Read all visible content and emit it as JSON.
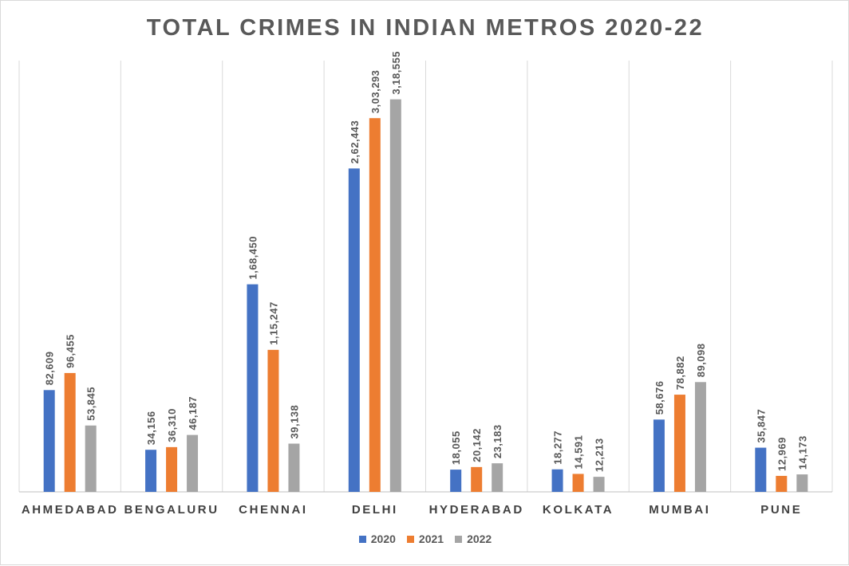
{
  "chart_data": {
    "type": "bar",
    "title": "TOTAL CRIMES IN INDIAN METROS 2020-22",
    "xlabel": "",
    "ylabel": "",
    "categories": [
      "AHMEDABAD",
      "BENGALURU",
      "CHENNAI",
      "DELHI",
      "HYDERABAD",
      "KOLKATA",
      "MUMBAI",
      "PUNE"
    ],
    "series": [
      {
        "name": "2020",
        "color": "#4472C4",
        "values": [
          82609,
          34156,
          168450,
          262443,
          18055,
          18277,
          58676,
          35847
        ],
        "labels": [
          "82,609",
          "34,156",
          "1,68,450",
          "2,62,443",
          "18,055",
          "18,277",
          "58,676",
          "35,847"
        ]
      },
      {
        "name": "2021",
        "color": "#ED7D31",
        "values": [
          96455,
          36310,
          115247,
          303293,
          20142,
          14591,
          78882,
          12969
        ],
        "labels": [
          "96,455",
          "36,310",
          "1,15,247",
          "3,03,293",
          "20,142",
          "14,591",
          "78,882",
          "12,969"
        ]
      },
      {
        "name": "2022",
        "color": "#A5A5A5",
        "values": [
          53845,
          46187,
          39138,
          318555,
          23183,
          12213,
          89098,
          14173
        ],
        "labels": [
          "53,845",
          "46,187",
          "39,138",
          "3,18,555",
          "23,183",
          "12,213",
          "89,098",
          "14,173"
        ]
      }
    ],
    "ylim": [
      0,
      350000
    ],
    "y_axis_visible": false,
    "gridlines": "vertical category separators",
    "data_labels": "rotated vertical above bars",
    "legend_position": "bottom"
  }
}
